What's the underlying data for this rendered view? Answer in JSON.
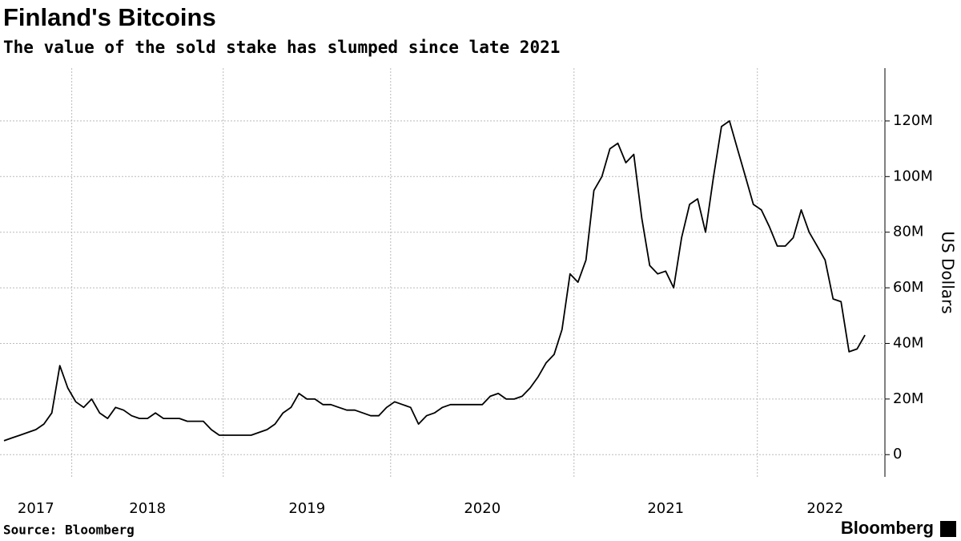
{
  "chart_data": {
    "type": "line",
    "title": "Finland's Bitcoins",
    "subtitle": "The value of the sold stake has slumped since late 2021",
    "y_label": "US Dollars",
    "source": "Source: Bloomberg",
    "brand": "Bloomberg",
    "categories": [
      null,
      null,
      null,
      null,
      "2017",
      null,
      null,
      null,
      null,
      null,
      null,
      null,
      null,
      null,
      null,
      null,
      null,
      null,
      "2018",
      null,
      null,
      null,
      null,
      null,
      null,
      null,
      null,
      null,
      null,
      null,
      null,
      null,
      null,
      null,
      null,
      null,
      null,
      null,
      "2019",
      null,
      null,
      null,
      null,
      null,
      null,
      null,
      null,
      null,
      null,
      null,
      null,
      null,
      null,
      null,
      null,
      null,
      null,
      null,
      null,
      null,
      "2020",
      null,
      null,
      null,
      null,
      null,
      null,
      null,
      null,
      null,
      null,
      null,
      null,
      null,
      null,
      null,
      null,
      null,
      null,
      null,
      null,
      null,
      null,
      "2021",
      null,
      null,
      null,
      null,
      null,
      null,
      null,
      null,
      null,
      null,
      null,
      null,
      null,
      null,
      null,
      null,
      null,
      null,
      null,
      "2022",
      null,
      null,
      null,
      null,
      null,
      null,
      null
    ],
    "series": [
      {
        "name": "US Dollars",
        "color": "#000000",
        "values": [
          5000000,
          6000000,
          7000000,
          8000000,
          9000000,
          11000000,
          15000000,
          32000000,
          24000000,
          19000000,
          17000000,
          20000000,
          15000000,
          13000000,
          17000000,
          16000000,
          14000000,
          13000000,
          13000000,
          15000000,
          13000000,
          13000000,
          13000000,
          12000000,
          12000000,
          12000000,
          9000000,
          7000000,
          7000000,
          7000000,
          7000000,
          7000000,
          8000000,
          9000000,
          11000000,
          15000000,
          17000000,
          22000000,
          20000000,
          20000000,
          18000000,
          18000000,
          17000000,
          16000000,
          16000000,
          15000000,
          14000000,
          14000000,
          17000000,
          19000000,
          18000000,
          17000000,
          11000000,
          14000000,
          15000000,
          17000000,
          18000000,
          18000000,
          18000000,
          18000000,
          18000000,
          21000000,
          22000000,
          20000000,
          20000000,
          21000000,
          24000000,
          28000000,
          33000000,
          36000000,
          45000000,
          65000000,
          62000000,
          70000000,
          95000000,
          100000000,
          110000000,
          112000000,
          105000000,
          108000000,
          85000000,
          68000000,
          65000000,
          66000000,
          60000000,
          78000000,
          90000000,
          92000000,
          80000000,
          100000000,
          118000000,
          120000000,
          110000000,
          100000000,
          90000000,
          88000000,
          82000000,
          75000000,
          75000000,
          78000000,
          88000000,
          80000000,
          75000000,
          70000000,
          56000000,
          55000000,
          37000000,
          38000000,
          43000000,
          null,
          null
        ]
      }
    ],
    "ylim": [
      -8000000,
      139000000
    ],
    "yticks": [
      0,
      {
        "value": 20000000,
        "label": "20M"
      },
      {
        "value": 40000000,
        "label": "40M"
      },
      {
        "value": 60000000,
        "label": "60M"
      },
      {
        "value": 80000000,
        "label": "80M"
      },
      {
        "value": 100000000,
        "label": "100M"
      },
      {
        "value": 120000000,
        "label": "120M"
      }
    ],
    "grid": true,
    "y_axis_side": "right"
  }
}
